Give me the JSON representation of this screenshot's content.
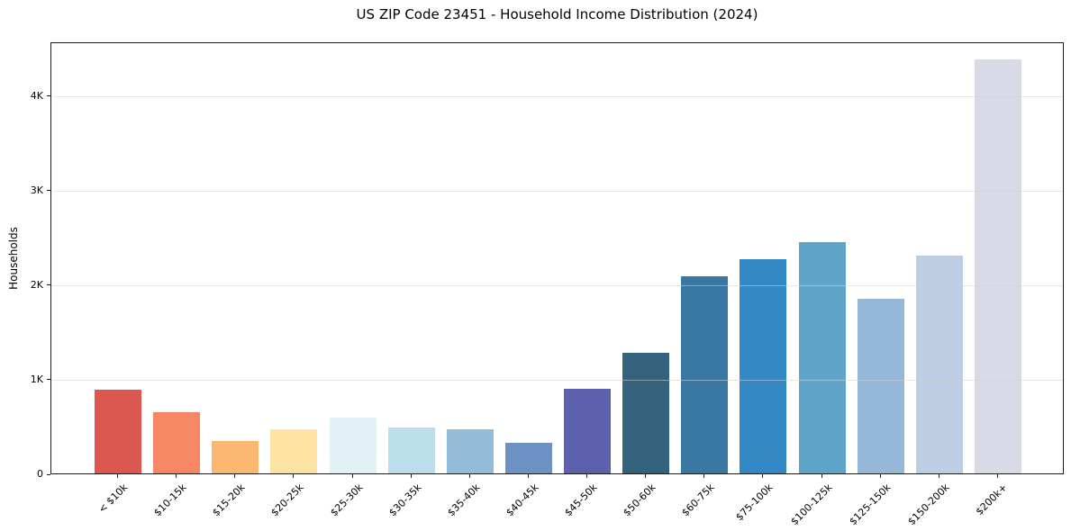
{
  "title": "US ZIP Code 23451 - Household Income Distribution (2024)",
  "chart_data": {
    "type": "bar",
    "title": "US ZIP Code 23451 - Household Income Distribution (2024)",
    "xlabel": "",
    "ylabel": "Households",
    "categories": [
      "< $10k",
      "$10-15k",
      "$15-20k",
      "$20-25k",
      "$25-30k",
      "$30-35k",
      "$35-40k",
      "$40-45k",
      "$45-50k",
      "$50-60k",
      "$60-75k",
      "$75-100k",
      "$100-125k",
      "$125-150k",
      "$150-200k",
      "$200k+"
    ],
    "values": [
      890,
      650,
      340,
      465,
      590,
      490,
      470,
      325,
      895,
      1275,
      2085,
      2270,
      2450,
      1850,
      2300,
      4380
    ],
    "bar_colors": [
      "#db5850",
      "#f58762",
      "#fbb76f",
      "#fde3a2",
      "#e2f1f6",
      "#bcdeea",
      "#92bcd8",
      "#6b92c3",
      "#5d60ac",
      "#34627c",
      "#3878a2",
      "#3489c4",
      "#5fa5c9",
      "#95b8d9",
      "#bdcde3",
      "#d8dae8"
    ],
    "ylim": [
      0,
      4570
    ],
    "yticks": [
      {
        "value": 0,
        "label": "0"
      },
      {
        "value": 1000,
        "label": "1K"
      },
      {
        "value": 2000,
        "label": "2K"
      },
      {
        "value": 3000,
        "label": "3K"
      },
      {
        "value": 4000,
        "label": "4K"
      }
    ],
    "grid": "horizontal",
    "legend": "none"
  },
  "colors": {
    "background": "#ffffff",
    "spine": "#1a1a1a",
    "gridline": "#d7d7d7",
    "text": "#000000"
  }
}
